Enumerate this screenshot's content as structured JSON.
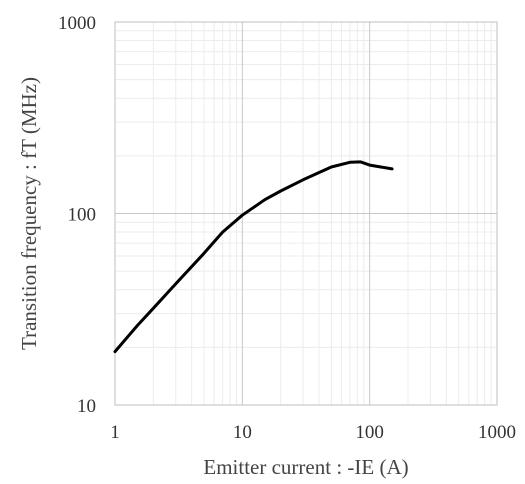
{
  "chart_data": {
    "type": "line",
    "title": "",
    "xlabel": "Emitter current : -IE (A)",
    "ylabel": "Transition frequency : fT (MHz)",
    "x_scale": "log",
    "y_scale": "log",
    "xlim": [
      1,
      1000
    ],
    "ylim": [
      10,
      1000
    ],
    "x_ticks": [
      "1",
      "10",
      "100",
      "1000"
    ],
    "y_ticks": [
      "10",
      "100",
      "1000"
    ],
    "grid": true,
    "legend": "none",
    "series": [
      {
        "x": [
          1,
          1.5,
          2,
          3,
          5,
          7,
          10,
          15,
          20,
          30,
          50,
          70,
          85,
          100,
          150
        ],
        "y": [
          19,
          26,
          32,
          43,
          62,
          80,
          98,
          118,
          131,
          150,
          175,
          185,
          186,
          179,
          171
        ],
        "color": "#000000"
      }
    ]
  }
}
